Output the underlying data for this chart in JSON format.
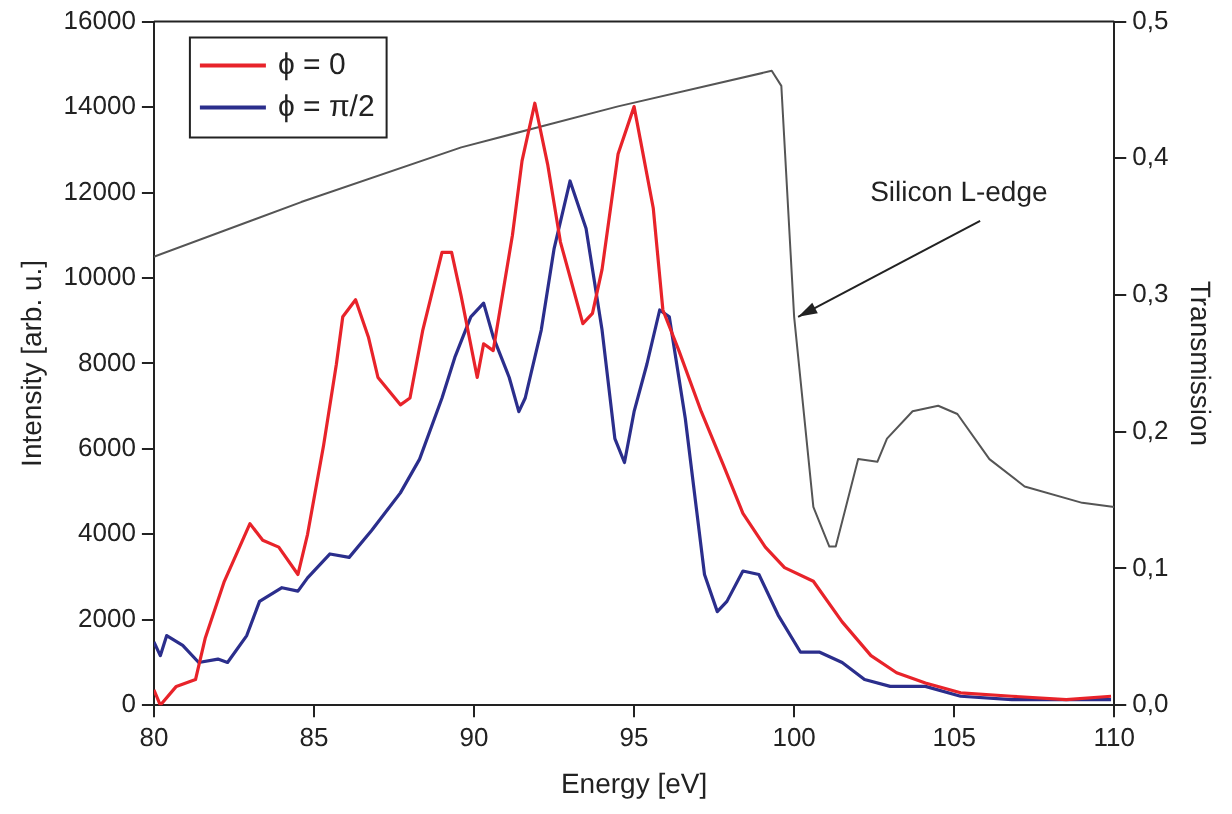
{
  "chart_data": {
    "type": "line",
    "xlabel": "Energy [eV]",
    "ylabel": "Intensity [arb. u.]",
    "y2label": "Transmission",
    "xlim": [
      80,
      110
    ],
    "xticks": [
      80,
      85,
      90,
      95,
      100,
      105,
      110
    ],
    "ylim": [
      0,
      16000
    ],
    "yticks": [
      0,
      2000,
      4000,
      6000,
      8000,
      10000,
      12000,
      14000,
      16000
    ],
    "y2lim": [
      0,
      0.5
    ],
    "y2ticks": [
      {
        "value": 0,
        "label": "0,0"
      },
      {
        "value": 0.1,
        "label": "0,1"
      },
      {
        "value": 0.2,
        "label": "0,2"
      },
      {
        "value": 0.3,
        "label": "0,3"
      },
      {
        "value": 0.4,
        "label": "0,4"
      },
      {
        "value": 0.5,
        "label": "0,5"
      }
    ],
    "grid": false,
    "legend": "top left",
    "marker": "none",
    "line_style": "solid",
    "annotations": [
      {
        "text": "Silicon L-edge",
        "x": 100.0,
        "y": 9090
      }
    ],
    "series": [
      {
        "name": "ϕ = 0",
        "color": "#e8232a",
        "x": [
          80,
          80.2,
          80.7,
          81.3,
          81.6,
          82.2,
          83.0,
          83.4,
          83.9,
          84.5,
          84.8,
          85.3,
          85.7,
          85.9,
          86.3,
          86.7,
          87.0,
          87.7,
          88.0,
          88.4,
          89.0,
          89.3,
          89.6,
          90.1,
          90.3,
          90.6,
          91.2,
          91.5,
          91.9,
          92.3,
          92.7,
          93.4,
          93.7,
          94.0,
          94.5,
          95.0,
          95.2,
          95.6,
          95.9,
          96.4,
          97.1,
          97.8,
          98.4,
          99.1,
          99.7,
          100.6,
          101.5,
          102.4,
          103.2,
          104.1,
          105.2,
          106.8,
          108.5,
          109.9
        ],
        "values": [
          360,
          0,
          440,
          600,
          1560,
          2900,
          4250,
          3860,
          3700,
          3060,
          4000,
          6080,
          7980,
          9090,
          9490,
          8620,
          7670,
          7030,
          7190,
          8780,
          10600,
          10600,
          9570,
          7670,
          8460,
          8300,
          11000,
          12740,
          14090,
          12660,
          10840,
          8930,
          9170,
          10200,
          12900,
          14010,
          13220,
          11630,
          9250,
          8300,
          6870,
          5600,
          4490,
          3700,
          3220,
          2900,
          1950,
          1160,
          760,
          520,
          290,
          210,
          130,
          210
        ]
      },
      {
        "name": "ϕ = π/2",
        "color": "#2b2e8c",
        "x": [
          80,
          80.2,
          80.4,
          80.9,
          81.4,
          82.0,
          82.3,
          82.9,
          83.3,
          84.0,
          84.5,
          84.8,
          85.5,
          86.1,
          86.8,
          87.7,
          88.3,
          89.0,
          89.4,
          89.9,
          90.3,
          90.6,
          91.1,
          91.4,
          91.6,
          92.1,
          92.5,
          93.0,
          93.5,
          94.0,
          94.4,
          94.7,
          95.0,
          95.4,
          95.8,
          96.1,
          96.6,
          97.2,
          97.6,
          97.9,
          98.4,
          98.9,
          99.5,
          100.2,
          100.8,
          101.5,
          102.2,
          103.0,
          104.1,
          105.2,
          106.8,
          108.5,
          109.9
        ],
        "values": [
          1480,
          1160,
          1630,
          1400,
          1000,
          1080,
          1000,
          1630,
          2430,
          2750,
          2670,
          2980,
          3540,
          3460,
          4090,
          4970,
          5760,
          7190,
          8140,
          9090,
          9410,
          8620,
          7670,
          6870,
          7190,
          8780,
          10680,
          12270,
          11160,
          8780,
          6240,
          5680,
          6870,
          7980,
          9250,
          9090,
          6710,
          3060,
          2190,
          2430,
          3140,
          3060,
          2110,
          1240,
          1240,
          1000,
          600,
          440,
          440,
          210,
          130,
          130,
          130
        ]
      },
      {
        "axis": "y2",
        "color": "#555555",
        "x": [
          80,
          84.6,
          89.6,
          94.5,
          99.3,
          99.6,
          100.0,
          100.6,
          101.1,
          101.3,
          102.0,
          102.6,
          102.9,
          103.7,
          104.5,
          105.1,
          106.1,
          107.2,
          109.0,
          110
        ],
        "values": [
          0.328,
          0.368,
          0.408,
          0.438,
          0.464,
          0.453,
          0.284,
          0.145,
          0.116,
          0.116,
          0.18,
          0.178,
          0.195,
          0.215,
          0.219,
          0.213,
          0.18,
          0.16,
          0.148,
          0.145
        ]
      }
    ]
  }
}
